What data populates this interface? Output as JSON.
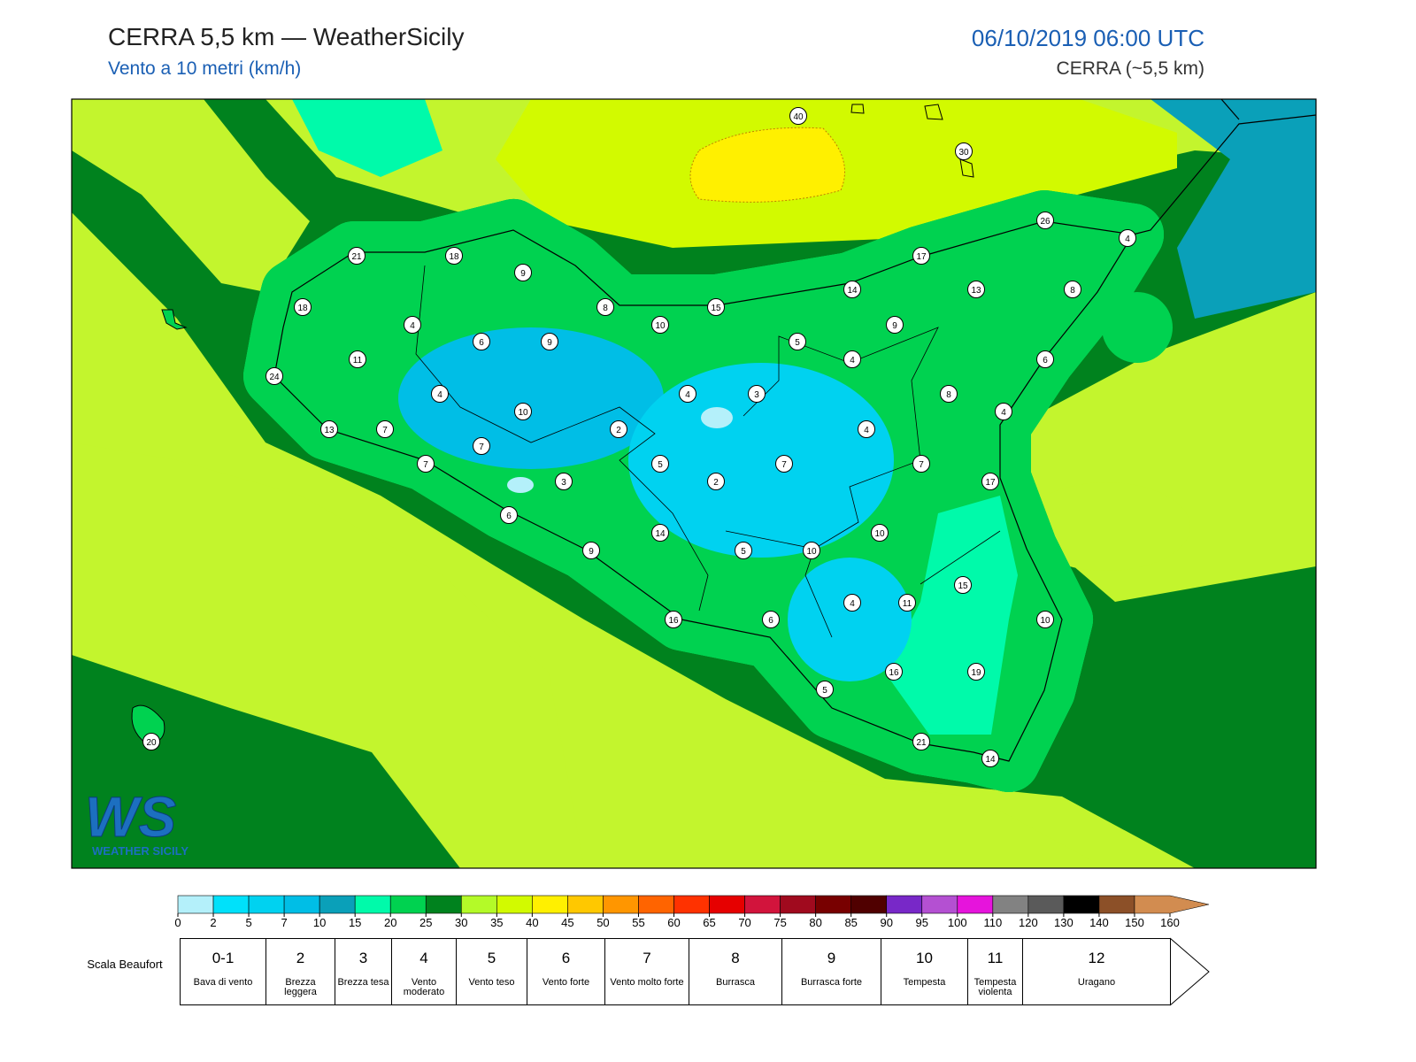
{
  "header": {
    "title": "CERRA 5,5 km — WeatherSicily",
    "subtitle": "Vento a 10 metri (km/h)",
    "datetime": "06/10/2019 06:00 UTC",
    "model": "CERRA (~5,5 km)"
  },
  "logo": {
    "mark": "WS",
    "text": "WEATHER SICILY"
  },
  "stations": [
    40,
    30,
    26,
    4,
    21,
    18,
    17,
    9,
    14,
    13,
    8,
    18,
    8,
    15,
    10,
    9,
    4,
    6,
    9,
    5,
    11,
    4,
    6,
    24,
    4,
    4,
    3,
    8,
    10,
    4,
    13,
    7,
    2,
    4,
    7,
    7,
    5,
    7,
    7,
    3,
    2,
    17,
    6,
    14,
    10,
    9,
    5,
    10,
    15,
    4,
    11,
    16,
    6,
    10,
    16,
    19,
    5,
    21,
    14,
    20
  ],
  "colorbar": {
    "ticks": [
      0,
      2,
      5,
      7,
      10,
      15,
      20,
      25,
      30,
      35,
      40,
      45,
      50,
      55,
      60,
      65,
      70,
      75,
      80,
      85,
      90,
      95,
      100,
      110,
      120,
      130,
      140,
      150,
      160
    ],
    "colors": [
      "#b4f0fa",
      "#00e1fa",
      "#00d2f0",
      "#00bee6",
      "#0aa0b9",
      "#00faaa",
      "#00d250",
      "#00821e",
      "#b4fa28",
      "#d2fa00",
      "#fff000",
      "#ffc800",
      "#ff9600",
      "#ff6400",
      "#ff3200",
      "#e60000",
      "#d2143c",
      "#a00a1e",
      "#780000",
      "#500000",
      "#7828c8",
      "#b450d2",
      "#e614dc",
      "#828282",
      "#5a5a5a",
      "#000000",
      "#8c5028",
      "#d28c50"
    ]
  },
  "beaufort": {
    "title": "Scala Beaufort",
    "levels": [
      {
        "force": "0-1",
        "label": "Bava di vento"
      },
      {
        "force": 2,
        "label": "Brezza leggera"
      },
      {
        "force": 3,
        "label": "Brezza tesa"
      },
      {
        "force": 4,
        "label": "Vento moderato"
      },
      {
        "force": 5,
        "label": "Vento teso"
      },
      {
        "force": 6,
        "label": "Vento forte"
      },
      {
        "force": 7,
        "label": "Vento molto forte"
      },
      {
        "force": 8,
        "label": "Burrasca"
      },
      {
        "force": 9,
        "label": "Burrasca forte"
      },
      {
        "force": 10,
        "label": "Tempesta"
      },
      {
        "force": 11,
        "label": "Tempesta violenta"
      },
      {
        "force": 12,
        "label": "Uragano"
      }
    ]
  }
}
